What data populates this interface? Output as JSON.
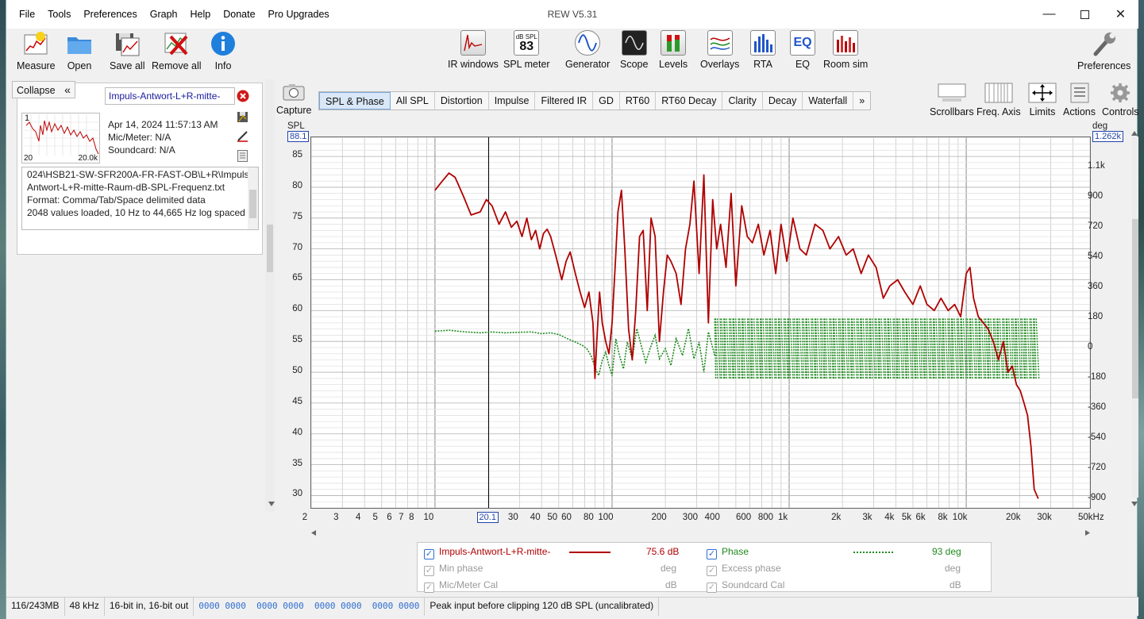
{
  "window": {
    "title": "REW V5.31"
  },
  "menu": [
    "File",
    "Tools",
    "Preferences",
    "Graph",
    "Help",
    "Donate",
    "Pro Upgrades"
  ],
  "toolbar_left": [
    {
      "label": "Measure",
      "icon": "measure-icon"
    },
    {
      "label": "Open",
      "icon": "folder-icon"
    },
    {
      "label": "Save all",
      "icon": "save-all-icon"
    },
    {
      "label": "Remove all",
      "icon": "remove-all-icon"
    },
    {
      "label": "Info",
      "icon": "info-icon"
    }
  ],
  "toolbar_center": [
    {
      "label": "IR windows",
      "icon": "ir-windows-icon"
    },
    {
      "label": "SPL meter",
      "icon": "spl-meter-icon",
      "top": "dB SPL",
      "value": "83"
    },
    {
      "label": "Generator",
      "icon": "generator-icon"
    },
    {
      "label": "Scope",
      "icon": "scope-icon"
    },
    {
      "label": "Levels",
      "icon": "levels-icon"
    },
    {
      "label": "Overlays",
      "icon": "overlays-icon"
    },
    {
      "label": "RTA",
      "icon": "rta-icon"
    },
    {
      "label": "EQ",
      "icon": "eq-icon",
      "text": "EQ"
    },
    {
      "label": "Room sim",
      "icon": "room-sim-icon"
    }
  ],
  "toolbar_right": {
    "label": "Preferences",
    "icon": "wrench-icon"
  },
  "left_panel": {
    "collapse": "Collapse",
    "collapse_glyph": "«",
    "measurement_name": "Impuls-Antwort-L+R-mitte-",
    "thumb_index": "1",
    "thumb_min": "20",
    "thumb_max": "20.0k",
    "date": "Apr 14, 2024 11:57:13 AM",
    "mic": "Mic/Meter: N/A",
    "soundcard": "Soundcard: N/A",
    "log": [
      "024\\HSB21-SW-SFR200A-FR-FAST-OB\\L+R\\Impuls-",
      "Antwort-L+R-mitte-Raum-dB-SPL-Frequenz.txt",
      "Format: Comma/Tab/Space delimited data",
      "2048 values loaded, 10 Hz to 44,665 Hz log spaced"
    ]
  },
  "capture_label": "Capture",
  "tabs": [
    "SPL & Phase",
    "All SPL",
    "Distortion",
    "Impulse",
    "Filtered IR",
    "GD",
    "RT60",
    "RT60 Decay",
    "Clarity",
    "Decay",
    "Waterfall",
    "»"
  ],
  "active_tab": "SPL & Phase",
  "graph_tools": [
    {
      "label": "Scrollbars",
      "icon": "scrollbars-icon"
    },
    {
      "label": "Freq. Axis",
      "icon": "freq-axis-icon"
    },
    {
      "label": "Limits",
      "icon": "limits-icon"
    },
    {
      "label": "Actions",
      "icon": "actions-icon"
    },
    {
      "label": "Controls",
      "icon": "controls-icon"
    }
  ],
  "chart_data": {
    "type": "line",
    "xlabel": "",
    "x_scale": "log",
    "xlim": [
      2,
      50000
    ],
    "x_ticks": [
      {
        "v": 2,
        "t": "2"
      },
      {
        "v": 3,
        "t": "3"
      },
      {
        "v": 4,
        "t": "4"
      },
      {
        "v": 5,
        "t": "5"
      },
      {
        "v": 6,
        "t": "6"
      },
      {
        "v": 7,
        "t": "7"
      },
      {
        "v": 8,
        "t": "8"
      },
      {
        "v": 10,
        "t": "10"
      },
      {
        "v": 30,
        "t": "30"
      },
      {
        "v": 40,
        "t": "40"
      },
      {
        "v": 50,
        "t": "50"
      },
      {
        "v": 60,
        "t": "60"
      },
      {
        "v": 80,
        "t": "80"
      },
      {
        "v": 100,
        "t": "100"
      },
      {
        "v": 200,
        "t": "200"
      },
      {
        "v": 300,
        "t": "300"
      },
      {
        "v": 400,
        "t": "400"
      },
      {
        "v": 600,
        "t": "600"
      },
      {
        "v": 800,
        "t": "800"
      },
      {
        "v": 1000,
        "t": "1k"
      },
      {
        "v": 2000,
        "t": "2k"
      },
      {
        "v": 3000,
        "t": "3k"
      },
      {
        "v": 4000,
        "t": "4k"
      },
      {
        "v": 5000,
        "t": "5k"
      },
      {
        "v": 6000,
        "t": "6k"
      },
      {
        "v": 8000,
        "t": "8k"
      },
      {
        "v": 10000,
        "t": "10k"
      },
      {
        "v": 20000,
        "t": "20k"
      },
      {
        "v": 30000,
        "t": "30k"
      },
      {
        "v": 50000,
        "t": "50kHz"
      }
    ],
    "cursor_x": {
      "v": 20.1,
      "t": "20.1"
    },
    "left_axis": {
      "label": "SPL",
      "min": 28,
      "max": 88.1,
      "top_box": "88.1",
      "ticks": [
        30,
        35,
        40,
        45,
        50,
        55,
        60,
        65,
        70,
        75,
        80,
        85
      ]
    },
    "right_axis": {
      "label": "deg",
      "min": -950,
      "max": 1262,
      "top_box": "1.262k",
      "ticks": [
        {
          "v": -900,
          "t": "-900"
        },
        {
          "v": -720,
          "t": "-720"
        },
        {
          "v": -540,
          "t": "-540"
        },
        {
          "v": -360,
          "t": "-360"
        },
        {
          "v": -180,
          "t": "-180"
        },
        {
          "v": 0,
          "t": "0"
        },
        {
          "v": 180,
          "t": "180"
        },
        {
          "v": 360,
          "t": "360"
        },
        {
          "v": 540,
          "t": "540"
        },
        {
          "v": 720,
          "t": "720"
        },
        {
          "v": 900,
          "t": "900"
        },
        {
          "v": 1080,
          "t": "1.1k"
        }
      ]
    },
    "series": [
      {
        "name": "Impuls-Antwort-L+R-mitte-",
        "axis": "left",
        "color": "#b00000",
        "x": [
          10,
          11,
          12,
          13,
          14.5,
          16,
          18,
          19.5,
          21,
          23,
          25,
          27,
          29,
          31,
          33,
          35,
          37,
          39,
          41,
          43,
          45,
          48,
          52,
          55,
          58,
          62,
          66,
          70,
          74,
          78,
          80,
          82,
          85,
          88,
          92,
          96,
          100,
          104,
          108,
          113,
          118,
          124,
          130,
          136,
          143,
          150,
          158,
          166,
          175,
          185,
          195,
          205,
          215,
          230,
          245,
          260,
          275,
          290,
          310,
          330,
          350,
          370,
          390,
          410,
          440,
          470,
          500,
          540,
          580,
          620,
          670,
          720,
          780,
          840,
          900,
          970,
          1050,
          1150,
          1250,
          1400,
          1550,
          1700,
          1900,
          2100,
          2300,
          2550,
          2800,
          3100,
          3400,
          3700,
          4100,
          4500,
          5000,
          5500,
          6000,
          6600,
          7200,
          7900,
          8600,
          9300,
          10000,
          10500,
          11000,
          11700,
          12500,
          13300,
          14200,
          15200,
          16200,
          17200,
          18200,
          19200,
          20200,
          21200,
          22200,
          23200,
          24200,
          25500
        ],
        "values": [
          79.5,
          81,
          82.3,
          81.6,
          78.5,
          75.5,
          76,
          78,
          77,
          74,
          76,
          73.5,
          74.5,
          72,
          75,
          71.5,
          73,
          70,
          72.5,
          73.2,
          72,
          69,
          65,
          68,
          69.5,
          66,
          63,
          60.5,
          63,
          58,
          49,
          55,
          63,
          58,
          55,
          53,
          58,
          67,
          76,
          79.5,
          70,
          57,
          52,
          60,
          72,
          73,
          60,
          75,
          72,
          55,
          63,
          69,
          68,
          66,
          61,
          70,
          74,
          81,
          66,
          82,
          58,
          78,
          70,
          74,
          67,
          79,
          64,
          77,
          72,
          71,
          74,
          69,
          73,
          66,
          74,
          68,
          75,
          70,
          69,
          74,
          73,
          70,
          72,
          69,
          70,
          66,
          69,
          67,
          62,
          64,
          65,
          63,
          61,
          64,
          61,
          60,
          62,
          60,
          61,
          59,
          66,
          67,
          62,
          59,
          58,
          57,
          55,
          52,
          55,
          50,
          51,
          48,
          47,
          45,
          43,
          38,
          31,
          29.5
        ]
      },
      {
        "name": "Phase",
        "axis": "right",
        "color": "#1e8a1e",
        "x": [
          10,
          12,
          15,
          18,
          21,
          25,
          30,
          35,
          40,
          45,
          50,
          56,
          62,
          68,
          72,
          76,
          80,
          84,
          88,
          92,
          96,
          100,
          105,
          110,
          116,
          122,
          130,
          138,
          146,
          155,
          165,
          175,
          185,
          200,
          215,
          230,
          250,
          270,
          290,
          310,
          330,
          350,
          380
        ],
        "values": [
          105,
          110,
          100,
          95,
          100,
          95,
          98,
          100,
          90,
          95,
          85,
          60,
          40,
          20,
          0,
          -40,
          -110,
          -160,
          -70,
          -20,
          -100,
          -160,
          60,
          -40,
          -120,
          40,
          -60,
          120,
          20,
          -80,
          10,
          80,
          -60,
          0,
          -100,
          60,
          -40,
          120,
          -60,
          40,
          -140,
          100,
          -40
        ],
        "wrap_from": 380,
        "wrap_to": 25000,
        "wrap_min": -180,
        "wrap_max": 180
      }
    ]
  },
  "legend": {
    "row1": [
      {
        "label": "Impuls-Antwort-L+R-mitte-",
        "value": "75.6 dB",
        "color": "#b00000"
      },
      {
        "label": "Phase",
        "value": "93 deg",
        "color": "#1e8a1e"
      }
    ],
    "row2": [
      {
        "label": "Min phase",
        "unit": "deg"
      },
      {
        "label": "Excess phase",
        "unit": "deg"
      }
    ],
    "row3": [
      {
        "label": "Mic/Meter Cal",
        "unit": "dB"
      },
      {
        "label": "Soundcard Cal",
        "unit": "dB"
      }
    ]
  },
  "status": {
    "memory": "116/243MB",
    "rate": "48 kHz",
    "bits": "16-bit in, 16-bit out",
    "levels": "0000 0000  0000 0000  0000 0000  0000 0000",
    "clip": "Peak input before clipping 120 dB SPL (uncalibrated)"
  }
}
